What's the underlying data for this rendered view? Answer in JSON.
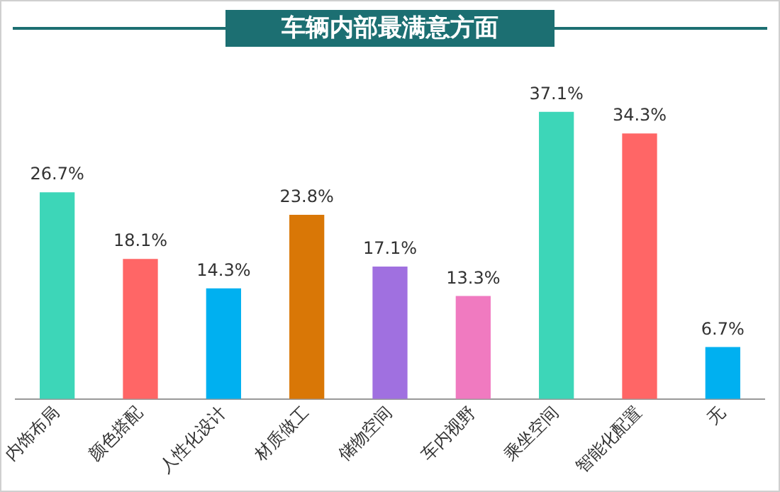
{
  "chart_data": {
    "type": "bar",
    "title": "车辆内部最满意方面",
    "categories": [
      "内饰布局",
      "颜色搭配",
      "人性化设计",
      "材质做工",
      "储物空间",
      "车内视野",
      "乘坐空间",
      "智能化配置",
      "无"
    ],
    "values": [
      26.7,
      18.1,
      14.3,
      23.8,
      17.1,
      13.3,
      37.1,
      34.3,
      6.7
    ],
    "colors": [
      "#3dd6b8",
      "#ff6666",
      "#00b0f0",
      "#d97706",
      "#a070e0",
      "#f07ac0",
      "#3dd6b8",
      "#ff6666",
      "#00b0f0"
    ],
    "value_labels": [
      "26.7%",
      "18.1%",
      "14.3%",
      "23.8%",
      "17.1%",
      "13.3%",
      "37.1%",
      "34.3%",
      "6.7%"
    ],
    "grid": false,
    "legend": false
  }
}
